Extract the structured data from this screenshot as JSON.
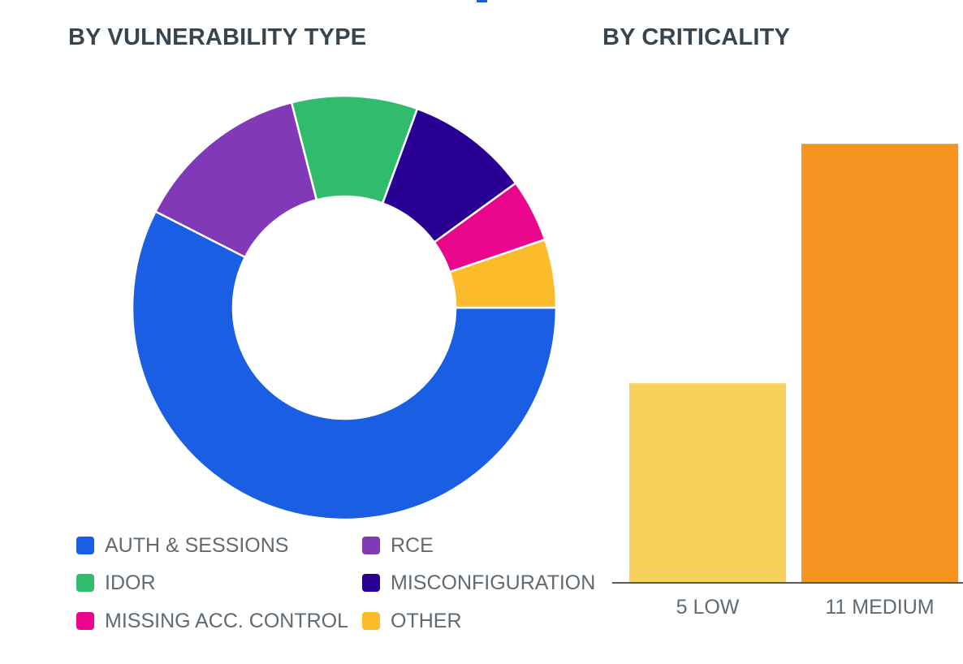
{
  "colors": {
    "title_text": "#36454f",
    "label_text": "#5f6a72",
    "axis_line": "#5a5a5a"
  },
  "chart_data": [
    {
      "type": "pie",
      "donut": true,
      "title": "BY VULNERABILITY TYPE",
      "slices": [
        {
          "label": "AUTH & SESSIONS",
          "value": 57.5,
          "color": "#1a5fe3"
        },
        {
          "label": "RCE",
          "value": 13.5,
          "color": "#8239b8"
        },
        {
          "label": "IDOR",
          "value": 9.6,
          "color": "#31bb6d"
        },
        {
          "label": "MISCONFIGURATION",
          "value": 9.4,
          "color": "#2a0094"
        },
        {
          "label": "MISSING ACC. CONTROL",
          "value": 4.8,
          "color": "#e9058c"
        },
        {
          "label": "OTHER",
          "value": 5.2,
          "color": "#fbbb2a"
        }
      ],
      "legend_position": "bottom"
    },
    {
      "type": "bar",
      "title": "BY CRITICALITY",
      "categories": [
        "5 LOW",
        "11 MEDIUM"
      ],
      "values": [
        5,
        11
      ],
      "colors": [
        "#f6d15c",
        "#f69422"
      ],
      "ylim": [
        0,
        12
      ]
    }
  ]
}
